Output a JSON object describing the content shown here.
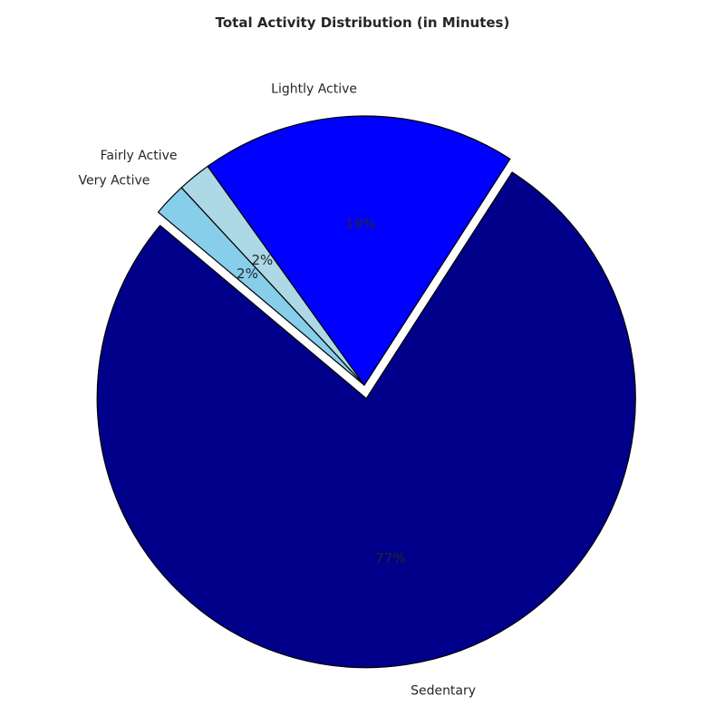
{
  "chart_data": {
    "type": "pie",
    "title": "Total Activity Distribution (in Minutes)",
    "categories": [
      "Sedentary",
      "Lightly Active",
      "Fairly Active",
      "Very Active"
    ],
    "values": [
      77,
      19,
      2,
      2
    ],
    "pct_labels": [
      "77%",
      "19%",
      "2%",
      "2%"
    ],
    "colors": [
      "#00008b",
      "#0000ff",
      "#add8e6",
      "#87ceeb"
    ],
    "explode": [
      0.05,
      0,
      0,
      0
    ],
    "start_angle_deg": 140,
    "counterclockwise": true,
    "edge_color": "#000000",
    "legend": "none"
  }
}
